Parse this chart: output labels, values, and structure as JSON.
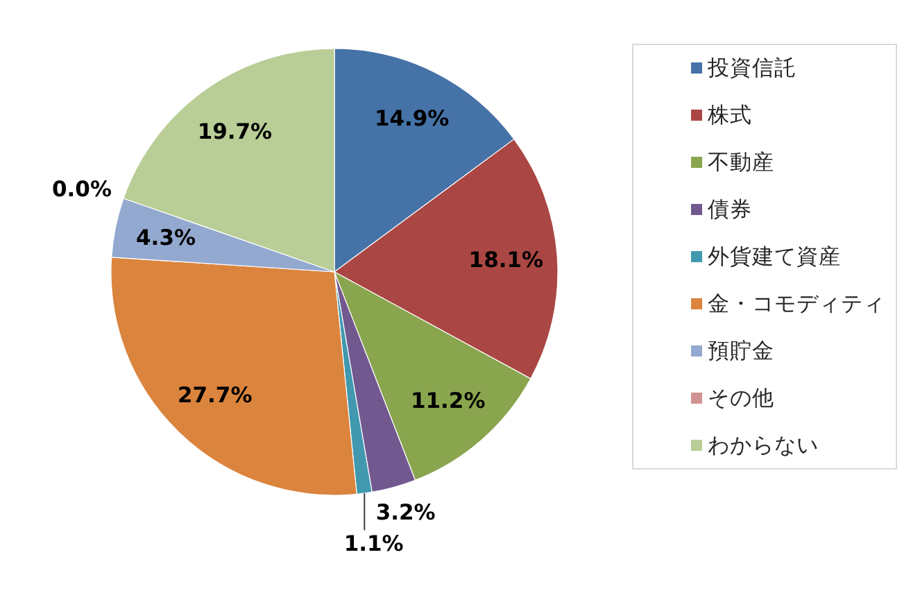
{
  "chart_data": {
    "type": "pie",
    "categories": [
      "投資信託",
      "株式",
      "不動産",
      "債券",
      "外貨建て資産",
      "金・コモディティ",
      "預貯金",
      "その他",
      "わからない"
    ],
    "values": [
      14.9,
      18.1,
      11.2,
      3.2,
      1.1,
      27.7,
      4.3,
      0.0,
      19.7
    ],
    "colors": [
      "#4572a7",
      "#aa4643",
      "#89a54e",
      "#71588f",
      "#4198af",
      "#db843d",
      "#93a9cf",
      "#d19392",
      "#b9cd96"
    ],
    "value_labels": [
      "14.9%",
      "18.1%",
      "11.2%",
      "3.2%",
      "1.1%",
      "27.7%",
      "4.3%",
      "0.0%",
      "19.7%"
    ],
    "legend": "right"
  }
}
